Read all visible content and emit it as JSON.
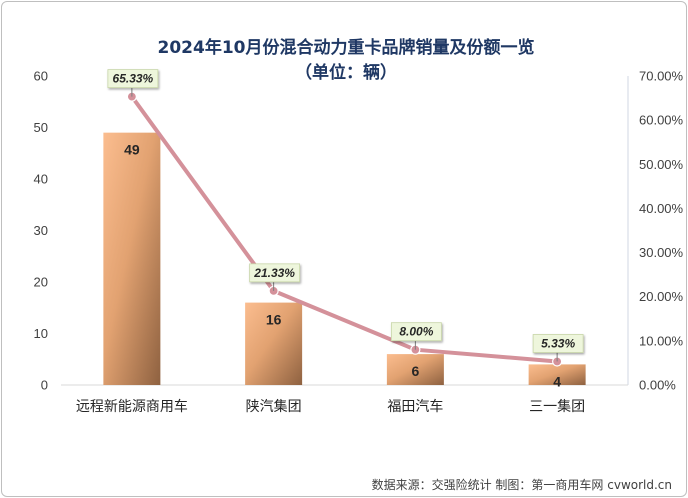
{
  "chart_data": {
    "type": "bar",
    "title_line1": "2024年10月份混合动力重卡品牌销量及份额一览",
    "title_line2": "（单位：辆）",
    "categories": [
      "远程新能源商用车",
      "陕汽集团",
      "福田汽车",
      "三一集团"
    ],
    "series": [
      {
        "type": "bar",
        "values": [
          49,
          16,
          6,
          4
        ],
        "axis": "left",
        "color": "#e9a878"
      },
      {
        "type": "line",
        "values": [
          65.33,
          21.33,
          8.0,
          5.33
        ],
        "axis": "right",
        "color": "#d4919a"
      }
    ],
    "bar_labels": [
      "49",
      "16",
      "6",
      "4"
    ],
    "point_labels": [
      "65.33%",
      "21.33%",
      "8.00%",
      "5.33%"
    ],
    "y_left": {
      "range": [
        0,
        60
      ],
      "ticks": [
        "0",
        "10",
        "20",
        "30",
        "40",
        "50",
        "60"
      ]
    },
    "y_right": {
      "range": [
        0,
        70
      ],
      "ticks": [
        "0.00%",
        "10.00%",
        "20.00%",
        "30.00%",
        "40.00%",
        "50.00%",
        "60.00%",
        "70.00%"
      ]
    },
    "grid": false,
    "legend": "none"
  },
  "source_text": "数据来源：交强险统计 制图：第一商用车网 cvworld.cn"
}
